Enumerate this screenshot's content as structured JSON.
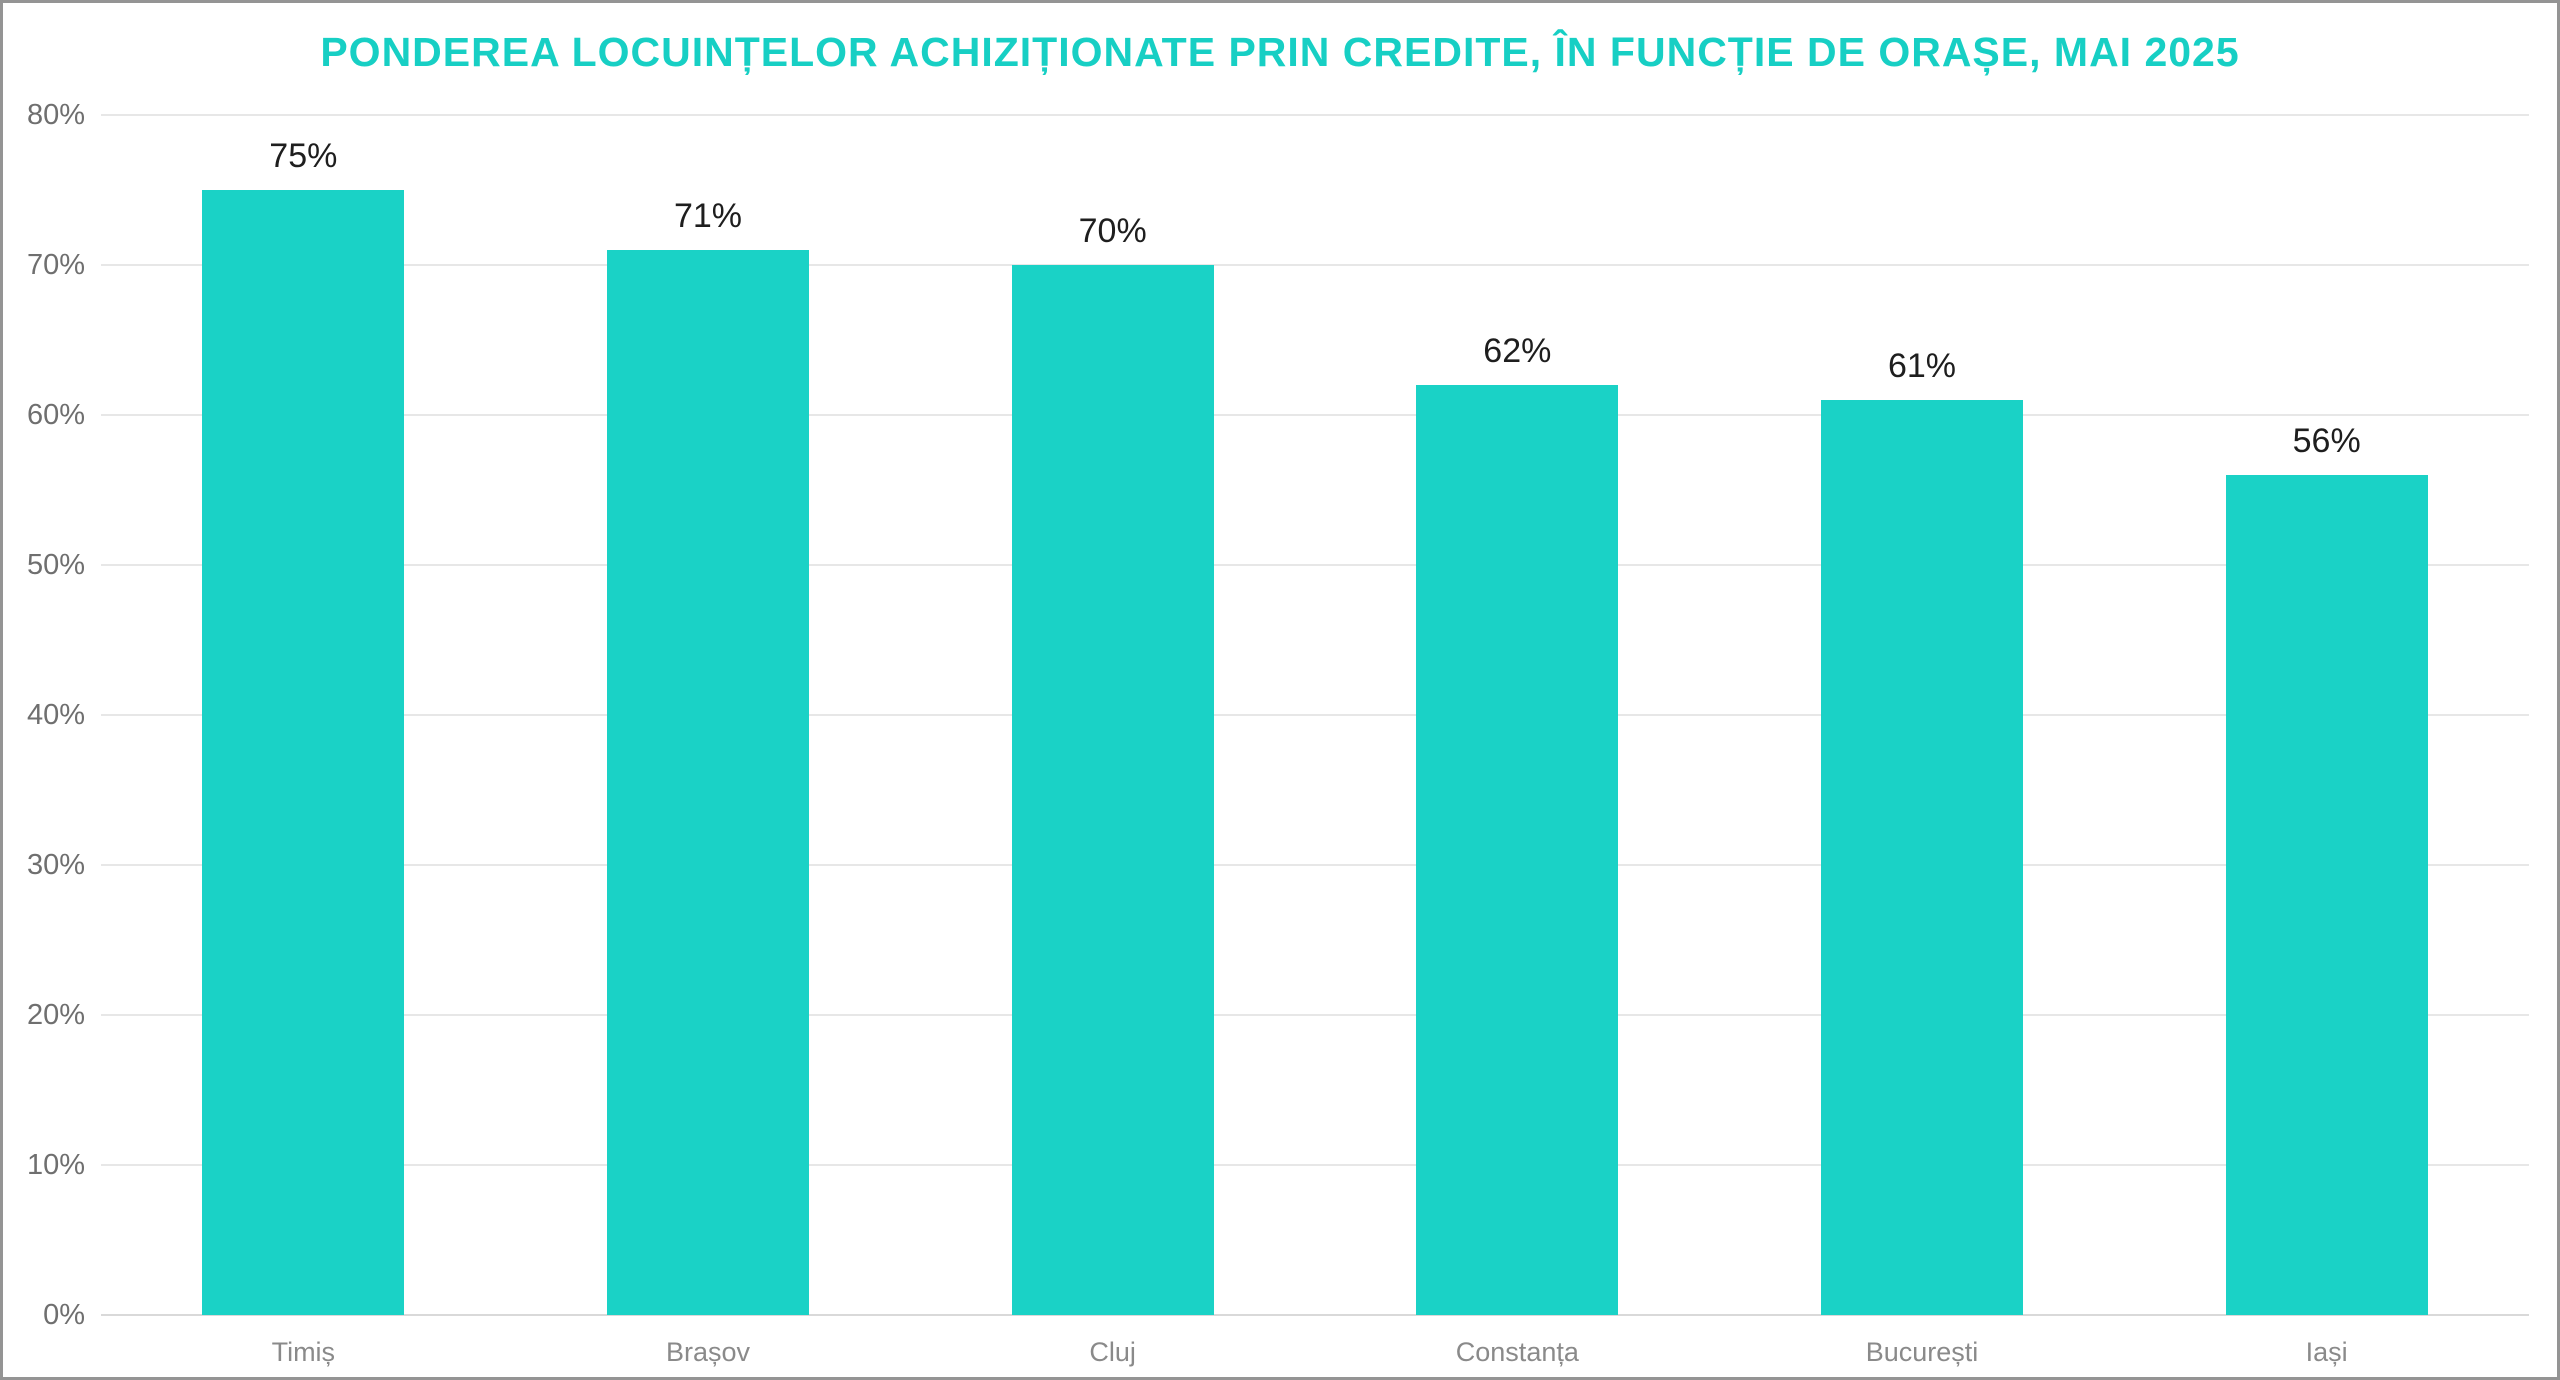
{
  "title": "PONDEREA LOCUINȚELOR ACHIZIȚIONATE PRIN CREDITE, ÎN FUNCȚIE DE ORAȘE, MAI 2025",
  "chart_data": {
    "type": "bar",
    "title": "PONDEREA LOCUINȚELOR ACHIZIȚIONATE PRIN CREDITE, ÎN FUNCȚIE DE ORAȘE, MAI 2025",
    "categories": [
      "Timiș",
      "Brașov",
      "Cluj",
      "Constanța",
      "București",
      "Iași"
    ],
    "values": [
      75,
      71,
      70,
      62,
      61,
      56
    ],
    "value_labels": [
      "75%",
      "71%",
      "70%",
      "62%",
      "61%",
      "56%"
    ],
    "xlabel": "",
    "ylabel": "",
    "ylim": [
      0,
      80
    ],
    "y_tick_step": 10,
    "y_tick_labels": [
      "0%",
      "10%",
      "20%",
      "30%",
      "40%",
      "50%",
      "60%",
      "70%",
      "80%"
    ],
    "grid": "horizontal-on",
    "legend": "none"
  },
  "colors": {
    "title": "#17CFC4",
    "bar": "#1AD2C6",
    "gridline": "#e7e7e7",
    "zero_line": "#d9d9d9",
    "y_tick_label": "#6f6f6f",
    "x_label": "#8a8a8a",
    "value_label": "#1e1e1e",
    "frame_border": "#949494",
    "background": "#ffffff"
  }
}
